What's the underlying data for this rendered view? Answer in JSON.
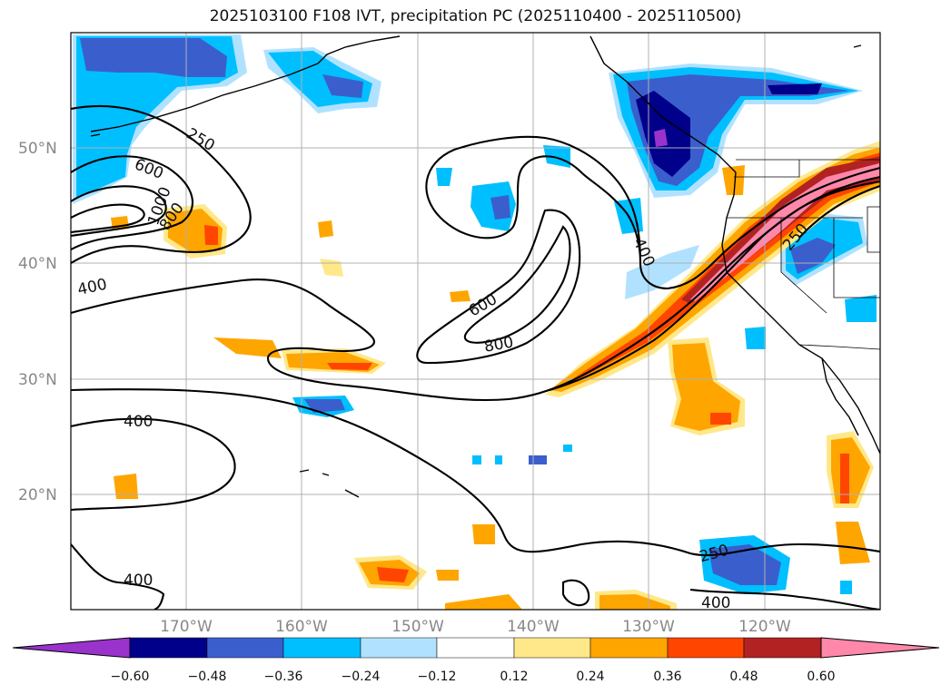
{
  "title": "2025103100 F108 IVT, precipitation PC (2025110400 - 2025110500)",
  "lat_labels": [
    "50°N",
    "40°N",
    "30°N",
    "20°N"
  ],
  "lon_labels": [
    "170°W",
    "160°W",
    "150°W",
    "140°W",
    "130°W",
    "120°W"
  ],
  "colorbar": {
    "labels": [
      "−0.60",
      "−0.48",
      "−0.36",
      "−0.24",
      "−0.12",
      "0.12",
      "0.24",
      "0.36",
      "0.48",
      "0.60"
    ],
    "colors": [
      "#9933cc",
      "#00008b",
      "#3a5fcd",
      "#00bfff",
      "#b0e2ff",
      "#ffffff",
      "#ffe88a",
      "#ffa500",
      "#ff4500",
      "#b22222",
      "#ff88aa"
    ]
  },
  "contour_labels": {
    "c250_nw": "250",
    "c600_nw": "600",
    "c1000_nw": "1000",
    "c800_nw": "800",
    "c400_w": "400",
    "c400_coast": "400",
    "c600_mid": "600",
    "c800_mid": "800",
    "c250_ne": "250",
    "c400_sw": "400",
    "c400_sw2": "400",
    "c250_se": "250",
    "c400_se": "400"
  }
}
